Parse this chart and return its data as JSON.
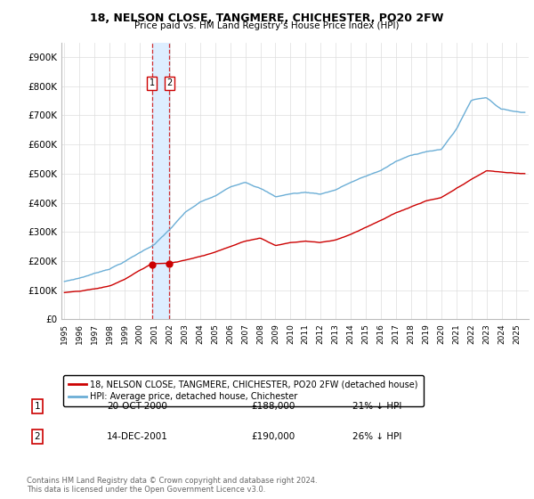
{
  "title": "18, NELSON CLOSE, TANGMERE, CHICHESTER, PO20 2FW",
  "subtitle": "Price paid vs. HM Land Registry's House Price Index (HPI)",
  "legend_line1": "18, NELSON CLOSE, TANGMERE, CHICHESTER, PO20 2FW (detached house)",
  "legend_line2": "HPI: Average price, detached house, Chichester",
  "transaction1_label": "1",
  "transaction1_date": "20-OCT-2000",
  "transaction1_price": "£188,000",
  "transaction1_hpi": "21% ↓ HPI",
  "transaction1_year": 2000.8,
  "transaction1_value": 188000,
  "transaction2_label": "2",
  "transaction2_date": "14-DEC-2001",
  "transaction2_price": "£190,000",
  "transaction2_hpi": "26% ↓ HPI",
  "transaction2_year": 2001.96,
  "transaction2_value": 190000,
  "footer": "Contains HM Land Registry data © Crown copyright and database right 2024.\nThis data is licensed under the Open Government Licence v3.0.",
  "hpi_color": "#6baed6",
  "price_color": "#cc0000",
  "highlight_color": "#ddeeff",
  "ylim_min": 0,
  "ylim_max": 950000,
  "yticks": [
    0,
    100000,
    200000,
    300000,
    400000,
    500000,
    600000,
    700000,
    800000,
    900000
  ],
  "xlim_min": 1994.8,
  "xlim_max": 2025.8
}
